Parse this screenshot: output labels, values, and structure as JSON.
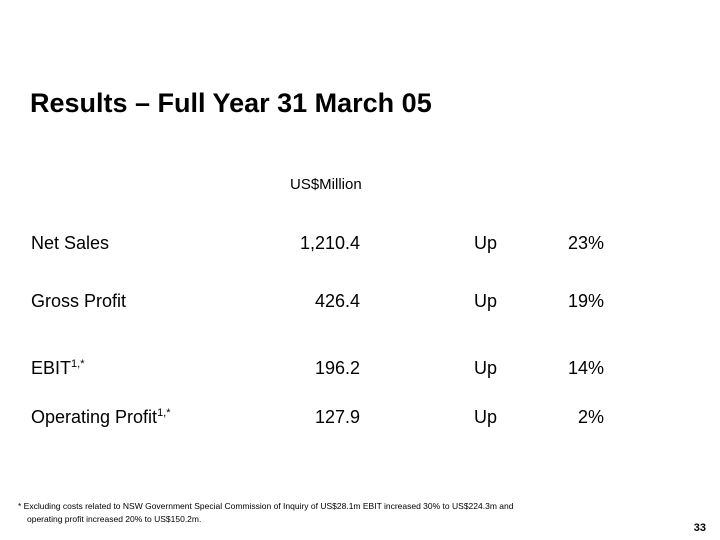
{
  "slide": {
    "title": "Results – Full Year 31 March 05",
    "column_header": "US$Million"
  },
  "rows": [
    {
      "label": "Net Sales",
      "superscript": "",
      "value": "1,210.4",
      "direction": "Up",
      "change": "23%"
    },
    {
      "label": "Gross Profit",
      "superscript": "",
      "value": "426.4",
      "direction": "Up",
      "change": "19%"
    },
    {
      "label": "EBIT",
      "superscript": "1,*",
      "value": "196.2",
      "direction": "Up",
      "change": "14%"
    },
    {
      "label": "Operating Profit",
      "superscript": "1,*",
      "value": "127.9",
      "direction": "Up",
      "change": "2%"
    }
  ],
  "footnote": {
    "line1": "* Excluding costs related to NSW Government Special Commission of Inquiry of US$28.1m EBIT increased 30% to US$224.3m and",
    "line2": "operating profit increased 20% to US$150.2m."
  },
  "page_number": "33"
}
